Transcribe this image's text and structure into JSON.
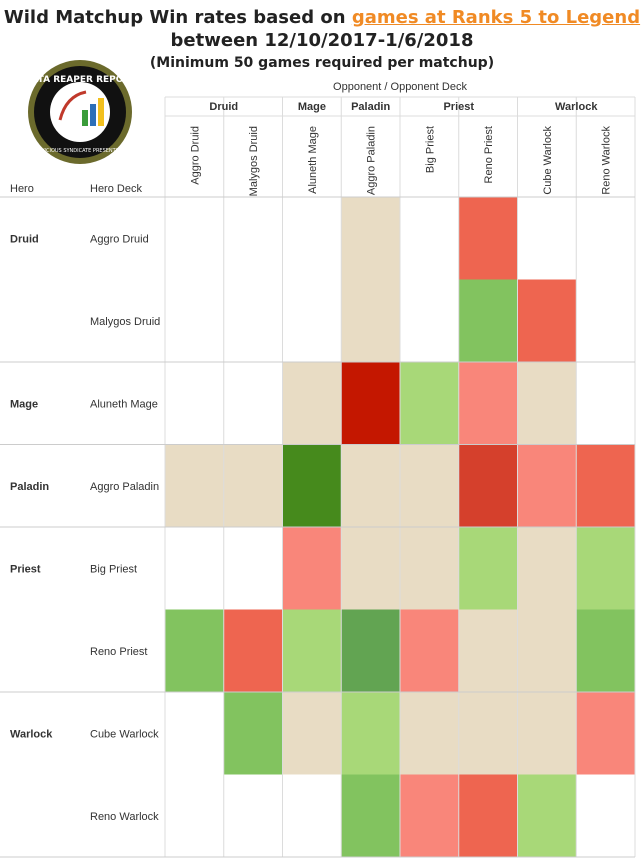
{
  "title": {
    "line1_prefix": "Wild Matchup Win rates based on ",
    "line1_link": "games at Ranks 5 to Legend",
    "line2": "between 12/10/2017-1/6/2018",
    "line3": "(Minimum 50 games required per matchup)"
  },
  "logo": {
    "text_top": "DATA REAPER REPORT",
    "text_bottom": "VICIOUS SYNDICATE PRESENTS"
  },
  "colors": {
    "neutral": "#e8dcc4",
    "light_green": "#a8d878",
    "green": "#82c35f",
    "mid_green": "#62a452",
    "dark_green": "#468a1c",
    "salmon": "#f9867a",
    "red": "#ee6550",
    "dark_red": "#d5402c",
    "deep_red": "#c41700",
    "empty": "#ffffff",
    "grid": "#dcdcdc"
  },
  "chart_data": {
    "type": "heatmap",
    "title": "Wild Matchup Win rates based on games at Ranks 5 to Legend between 12/10/2017-1/6/2018",
    "subtitle": "(Minimum 50 games required per matchup)",
    "column_axis_label": "Opponent  /  Opponent Deck",
    "row_header_hero": "Hero",
    "row_header_deck": "Hero Deck",
    "column_groups": [
      {
        "hero": "Druid",
        "decks": [
          "Aggro Druid",
          "Malygos Druid"
        ]
      },
      {
        "hero": "Mage",
        "decks": [
          "Aluneth Mage"
        ]
      },
      {
        "hero": "Paladin",
        "decks": [
          "Aggro Paladin"
        ]
      },
      {
        "hero": "Priest",
        "decks": [
          "Big Priest",
          "Reno Priest"
        ]
      },
      {
        "hero": "Warlock",
        "decks": [
          "Cube Warlock",
          "Reno Warlock"
        ]
      }
    ],
    "row_groups": [
      {
        "hero": "Druid",
        "decks": [
          "Aggro Druid",
          "Malygos Druid"
        ]
      },
      {
        "hero": "Mage",
        "decks": [
          "Aluneth Mage"
        ]
      },
      {
        "hero": "Paladin",
        "decks": [
          "Aggro Paladin"
        ]
      },
      {
        "hero": "Priest",
        "decks": [
          "Big Priest",
          "Reno Priest"
        ]
      },
      {
        "hero": "Warlock",
        "decks": [
          "Cube Warlock",
          "Reno Warlock"
        ]
      }
    ],
    "cells": [
      [
        "empty",
        "empty",
        "empty",
        "neutral",
        "empty",
        "red",
        "empty",
        "empty"
      ],
      [
        "empty",
        "empty",
        "empty",
        "neutral",
        "empty",
        "green",
        "red",
        "empty"
      ],
      [
        "empty",
        "empty",
        "neutral",
        "deep_red",
        "light_green",
        "salmon",
        "neutral",
        "empty"
      ],
      [
        "neutral",
        "neutral",
        "dark_green",
        "neutral",
        "neutral",
        "dark_red",
        "salmon",
        "red"
      ],
      [
        "empty",
        "empty",
        "salmon",
        "neutral",
        "neutral",
        "light_green",
        "neutral",
        "light_green"
      ],
      [
        "green",
        "red",
        "light_green",
        "mid_green",
        "salmon",
        "neutral",
        "neutral",
        "green"
      ],
      [
        "empty",
        "green",
        "neutral",
        "light_green",
        "neutral",
        "neutral",
        "neutral",
        "salmon"
      ],
      [
        "empty",
        "empty",
        "empty",
        "green",
        "salmon",
        "red",
        "light_green",
        "empty"
      ]
    ]
  }
}
